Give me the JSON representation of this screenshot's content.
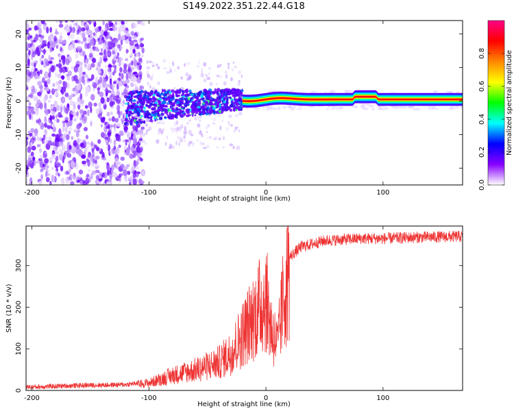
{
  "title": "S149.2022.351.22.44.G18",
  "chart_data": [
    {
      "type": "heatmap",
      "xlabel": "Height of straight line (km)",
      "ylabel": "Frequency (Hz)",
      "xlim": [
        -205,
        168
      ],
      "ylim": [
        -25,
        24
      ],
      "x_ticks": [
        -200,
        -100,
        0,
        100
      ],
      "y_ticks": [
        -20,
        -10,
        0,
        10,
        20
      ],
      "colorbar": {
        "label": "Normalized spectral amplitude",
        "range": [
          0,
          1
        ],
        "ticks": [
          0.0,
          0.2,
          0.4,
          0.6,
          0.8
        ],
        "colors": [
          "#ffffff",
          "#8800ff",
          "#0000ff",
          "#00ffff",
          "#00ff00",
          "#ffff00",
          "#ff8800",
          "#ff0000",
          "#ff0088"
        ]
      },
      "regions": [
        {
          "x": [
            -205,
            -105
          ],
          "freq": [
            -25,
            24
          ],
          "amplitude": 0.15,
          "desc_value": "noise"
        },
        {
          "x": [
            -120,
            -20
          ],
          "freq": [
            -8,
            5
          ],
          "amplitude": 0.3
        },
        {
          "x": [
            -20,
            168
          ],
          "freq": [
            -1,
            1.5
          ],
          "amplitude": 0.9
        }
      ]
    },
    {
      "type": "line",
      "xlabel": "Height of straight line (km)",
      "ylabel": "SNR (10 * v/v)",
      "xlim": [
        -205,
        168
      ],
      "ylim": [
        0,
        395
      ],
      "x_ticks": [
        -200,
        -100,
        0,
        100
      ],
      "y_ticks": [
        0,
        100,
        200,
        300
      ],
      "color": "#ee3333",
      "trend": {
        "x": [
          -205,
          -160,
          -120,
          -100,
          -80,
          -60,
          -40,
          -30,
          -20,
          -10,
          0,
          5,
          10,
          15,
          20,
          30,
          50,
          80,
          100,
          130,
          168
        ],
        "y": [
          8,
          12,
          14,
          20,
          40,
          55,
          75,
          100,
          150,
          200,
          250,
          160,
          120,
          250,
          320,
          345,
          360,
          365,
          365,
          368,
          370
        ]
      }
    }
  ]
}
